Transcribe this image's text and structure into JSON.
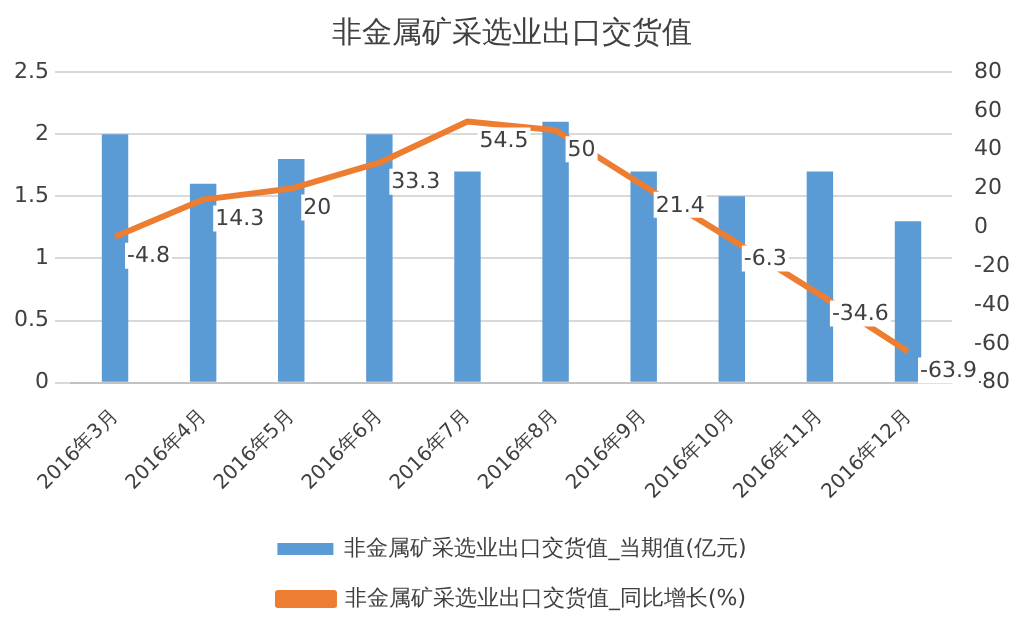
{
  "chart_data": {
    "type": "bar",
    "title": "非金属矿采选业出口交货值",
    "categories": [
      "2016年3月",
      "2016年4月",
      "2016年5月",
      "2016年6月",
      "2016年7月",
      "2016年8月",
      "2016年9月",
      "2016年10月",
      "2016年11月",
      "2016年12月"
    ],
    "series": [
      {
        "name": "非金属矿采选业出口交货值_当期值(亿元)",
        "color": "#5b9bd5",
        "values": [
          2,
          1.6,
          1.8,
          2,
          1.7,
          2.1,
          1.7,
          1.5,
          1.7,
          1.3
        ]
      },
      {
        "name": "非金属矿采选业出口交货值_同比增长(%)",
        "type": "line",
        "axis": "y2",
        "color": "#ed7d31",
        "values": [
          -4.8,
          14.3,
          20,
          33.3,
          54.5,
          50,
          21.4,
          -6.3,
          -34.6,
          -63.9
        ],
        "value_labels": [
          "-4.8",
          "14.3",
          "20",
          "33.3",
          "54.5",
          "50",
          "21.4",
          "-6.3",
          "-34.6",
          "-63.9"
        ]
      }
    ],
    "ylim": [
      0,
      2.5
    ],
    "yticks": [
      0,
      0.5,
      1,
      1.5,
      2,
      2.5
    ],
    "y2lim": [
      -80,
      80
    ],
    "y2ticks": [
      -80,
      -60,
      -40,
      -20,
      0,
      20,
      40,
      60,
      80
    ],
    "grid": "y",
    "legend": "bottom",
    "marker": "none"
  }
}
